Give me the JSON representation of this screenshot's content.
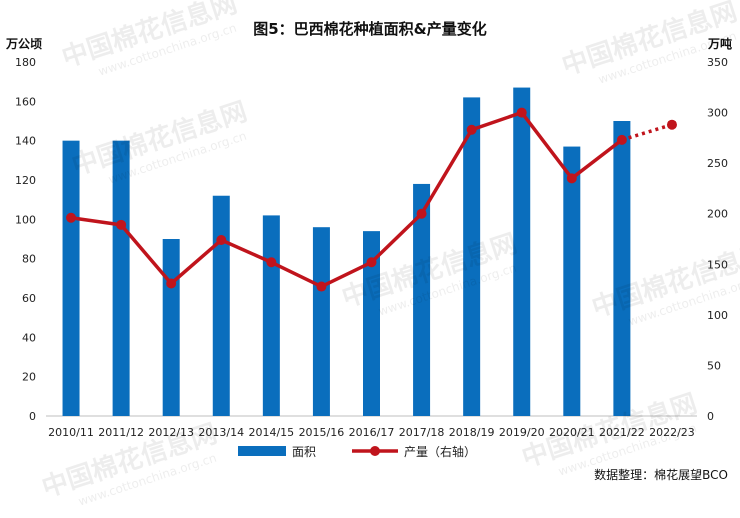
{
  "chart_data": {
    "type": "bar",
    "title": "图5：巴西棉花种植面积&产量变化",
    "ylabel_left": "万公顷",
    "ylabel_right": "万吨",
    "ylim_left": [
      0,
      180
    ],
    "ylim_right": [
      0,
      350
    ],
    "yticks_left": [
      "0",
      "20",
      "40",
      "60",
      "80",
      "100",
      "120",
      "140",
      "160",
      "180"
    ],
    "yticks_right": [
      "0",
      "50",
      "100",
      "150",
      "200",
      "250",
      "300",
      "350"
    ],
    "categories": [
      "2010/11",
      "2011/12",
      "2012/13",
      "2013/14",
      "2014/15",
      "2015/16",
      "2016/17",
      "2017/18",
      "2018/19",
      "2019/20",
      "2020/21",
      "2021/22",
      "2022/23"
    ],
    "series": [
      {
        "name": "面积",
        "type": "bar",
        "axis": "left",
        "color": "#0a6ebd",
        "values": [
          140,
          140,
          90,
          112,
          102,
          96,
          94,
          118,
          162,
          167,
          137,
          150,
          null
        ]
      },
      {
        "name": "产量（右轴）",
        "type": "line",
        "axis": "right",
        "color": "#c0141c",
        "values": [
          196,
          189,
          131,
          174,
          152,
          128,
          152,
          200,
          283,
          300,
          235,
          273,
          288
        ],
        "dashed_from_index": 11
      }
    ],
    "grid": false,
    "legend": "bottom"
  },
  "source": "数据整理：棉花展望BCO",
  "watermark": {
    "text": "中国棉花信息网",
    "url": "www.cottonchina.org.cn"
  }
}
